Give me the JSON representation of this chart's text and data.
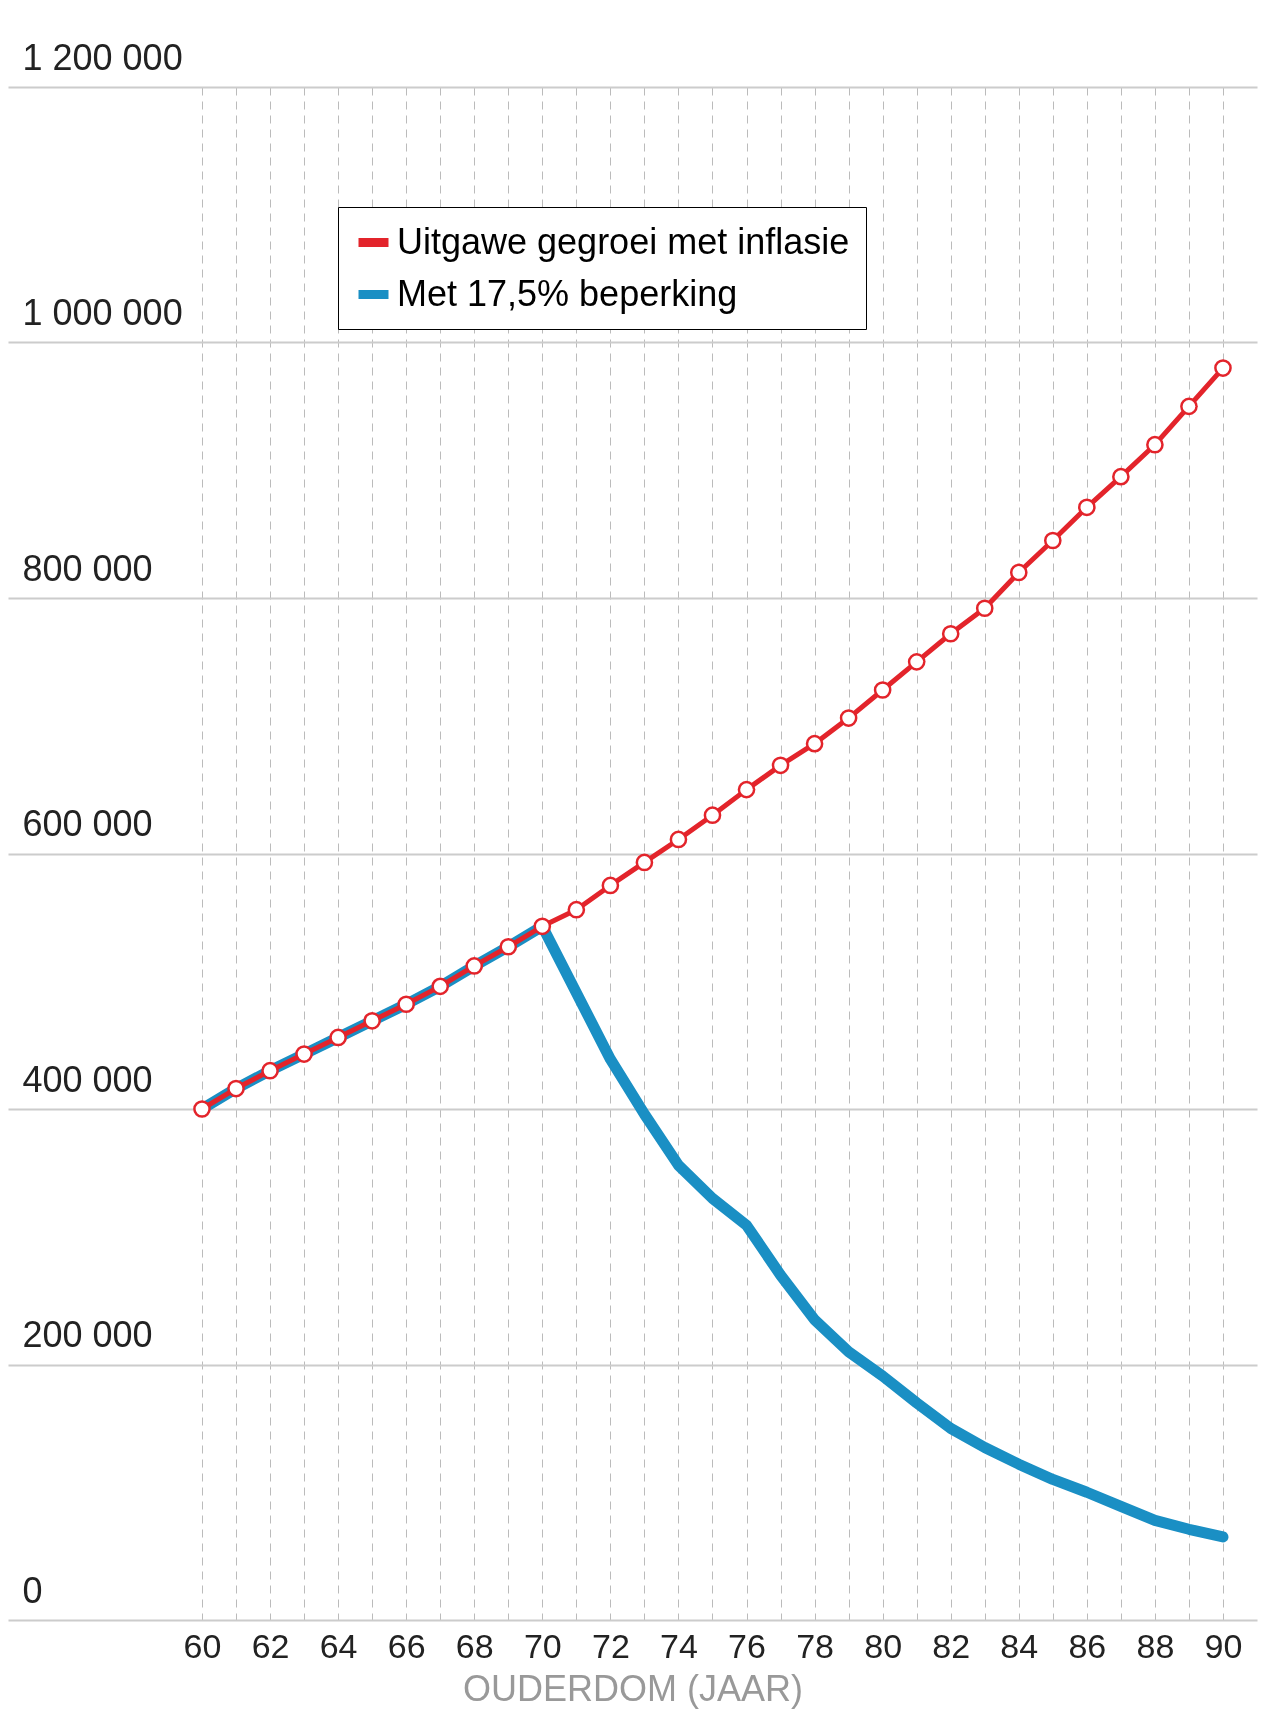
{
  "chart_data": {
    "type": "line",
    "xlabel": "OUDERDOM (JAAR)",
    "x": [
      60,
      61,
      62,
      63,
      64,
      65,
      66,
      67,
      68,
      69,
      70,
      71,
      72,
      73,
      74,
      75,
      76,
      77,
      78,
      79,
      80,
      81,
      82,
      83,
      84,
      85,
      86,
      87,
      88,
      89,
      90
    ],
    "series": [
      {
        "name": "Uitgawe gegroei met inflasie",
        "color": "#e3242b",
        "marker": "circle",
        "values": [
          400000,
          416000,
          430000,
          443000,
          456000,
          469000,
          482000,
          496000,
          512000,
          527000,
          543000,
          556000,
          575000,
          593000,
          611000,
          630000,
          650000,
          669000,
          686000,
          706000,
          728000,
          750000,
          772000,
          792000,
          820000,
          845000,
          871000,
          895000,
          920000,
          950000,
          980000
        ]
      },
      {
        "name": "Met 17,5% beperking",
        "color": "#1a8fc4",
        "marker": "none",
        "values": [
          400000,
          416000,
          430000,
          443000,
          456000,
          469000,
          482000,
          496000,
          512000,
          527000,
          543000,
          491000,
          439000,
          396000,
          356000,
          330000,
          309000,
          270000,
          235000,
          210000,
          191000,
          170000,
          150000,
          135000,
          122000,
          110000,
          100000,
          89000,
          78000,
          71000,
          65000
        ]
      }
    ],
    "xlim": [
      54.3,
      91
    ],
    "xticks": [
      60,
      {
        "value": 61,
        "label": null
      },
      62,
      {
        "value": 63,
        "label": null
      },
      64,
      {
        "value": 65,
        "label": null
      },
      66,
      {
        "value": 67,
        "label": null
      },
      68,
      {
        "value": 69,
        "label": null
      },
      70,
      {
        "value": 71,
        "label": null
      },
      72,
      {
        "value": 73,
        "label": null
      },
      74,
      {
        "value": 75,
        "label": null
      },
      76,
      {
        "value": 77,
        "label": null
      },
      78,
      {
        "value": 79,
        "label": null
      },
      80,
      {
        "value": 81,
        "label": null
      },
      82,
      {
        "value": 83,
        "label": null
      },
      84,
      {
        "value": 85,
        "label": null
      },
      86,
      {
        "value": 87,
        "label": null
      },
      88,
      {
        "value": 89,
        "label": null
      },
      90
    ],
    "ylim": [
      0,
      1200000
    ],
    "yticks": [
      0,
      {
        "value": 200000,
        "label": "200 000"
      },
      {
        "value": 400000,
        "label": "400 000"
      },
      {
        "value": 600000,
        "label": "600 000"
      },
      {
        "value": 800000,
        "label": "800 000"
      },
      {
        "value": 1000000,
        "label": "1 000 000"
      },
      {
        "value": 1200000,
        "label": "1 200 000"
      }
    ],
    "grid": true,
    "legend": "top left"
  }
}
